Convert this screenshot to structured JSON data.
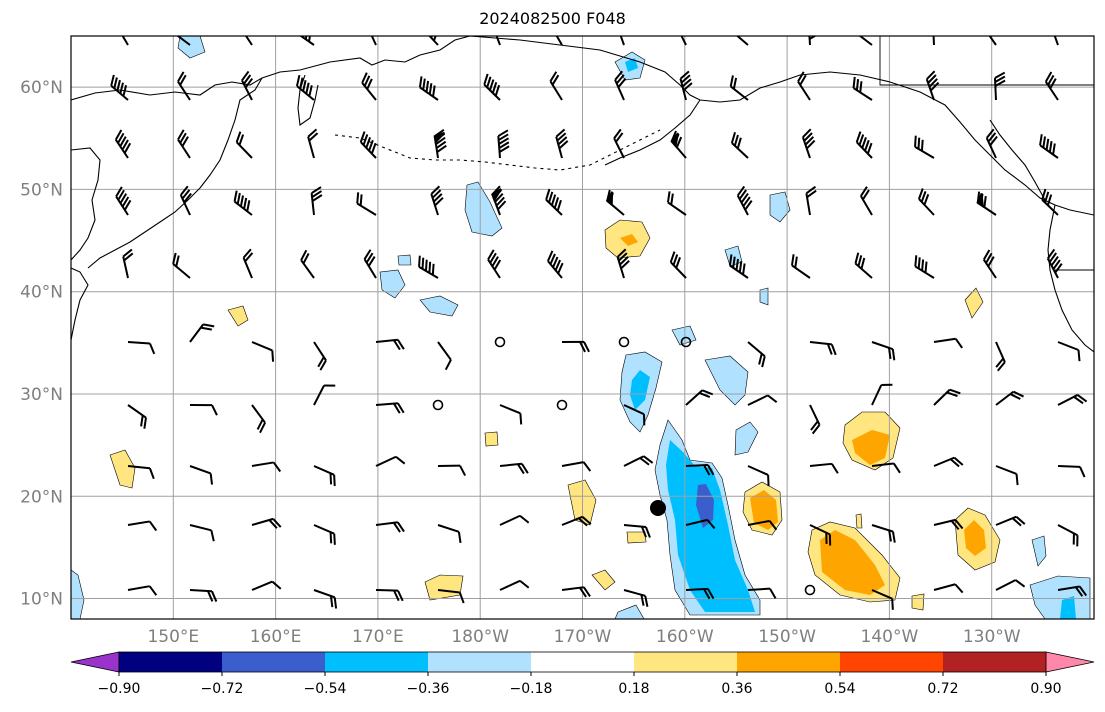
{
  "title": "2024082500 F048",
  "map": {
    "lat_labels": [
      "60°N",
      "50°N",
      "40°N",
      "30°N",
      "20°N",
      "10°N"
    ],
    "lon_labels": [
      "150°E",
      "160°E",
      "170°E",
      "180°W",
      "170°W",
      "160°W",
      "150°W",
      "140°W",
      "130°W"
    ],
    "grid": true,
    "lat_range": [
      8,
      65
    ],
    "lon_range": [
      140,
      240
    ]
  },
  "colorbar": {
    "levels": [
      "−0.90",
      "−0.72",
      "−0.54",
      "−0.36",
      "−0.18",
      "0.18",
      "0.36",
      "0.54",
      "0.72",
      "0.90"
    ],
    "colors": [
      "#9933cc",
      "#000080",
      "#3a5fcd",
      "#00bfff",
      "#b0e2ff",
      "#ffffff",
      "#ffe680",
      "#ffa500",
      "#ff4500",
      "#b22222",
      "#ff88aa"
    ]
  },
  "colors": {
    "grid": "#a0a0a0",
    "coast": "#000000",
    "label": "#7f7f7f"
  }
}
